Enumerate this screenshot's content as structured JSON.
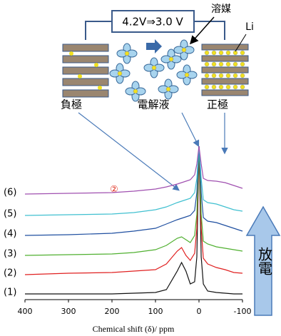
{
  "chart_data": {
    "type": "line",
    "x_label": "Chemical shift (δ)/ ppm",
    "annotations": [
      "4.2V⇒3.0 V",
      "溶媒",
      "Li",
      "負極",
      "電解液",
      "正極",
      "②",
      "放電"
    ],
    "x": [
      400,
      300,
      200,
      150,
      100,
      75,
      50,
      40,
      30,
      20,
      10,
      5,
      0,
      -5,
      -10,
      -20,
      -40,
      -60,
      -80,
      -100
    ],
    "xlim": [
      400,
      -100
    ],
    "xticks": [
      400,
      300,
      200,
      100,
      0,
      -100
    ],
    "ylim": [
      0,
      215
    ],
    "series": [
      {
        "name": "(1)",
        "color": "#111111",
        "values": [
          8,
          8,
          8,
          9,
          10,
          14,
          40,
          52,
          40,
          22,
          25,
          60,
          215,
          60,
          22,
          12,
          10,
          9,
          8,
          8
        ]
      },
      {
        "name": "(2)",
        "color": "#e02020",
        "values": [
          35,
          37,
          38,
          40,
          42,
          50,
          68,
          73,
          62,
          55,
          65,
          100,
          215,
          100,
          58,
          50,
          45,
          42,
          38,
          37
        ]
      },
      {
        "name": "(3)",
        "color": "#50b030",
        "values": [
          62,
          63,
          64,
          66,
          70,
          76,
          86,
          88,
          84,
          80,
          90,
          120,
          215,
          120,
          82,
          78,
          74,
          72,
          70,
          68
        ]
      },
      {
        "name": "(4)",
        "color": "#1f4fa0",
        "values": [
          90,
          91,
          93,
          96,
          100,
          106,
          112,
          114,
          116,
          118,
          125,
          150,
          215,
          150,
          115,
          110,
          108,
          104,
          100,
          96
        ]
      },
      {
        "name": "(5)",
        "color": "#40c0d0",
        "values": [
          118,
          119,
          120,
          122,
          126,
          130,
          136,
          138,
          140,
          142,
          150,
          170,
          215,
          170,
          140,
          136,
          134,
          130,
          126,
          124
        ]
      },
      {
        "name": "(6)",
        "color": "#a050b0",
        "values": [
          148,
          149,
          150,
          152,
          155,
          158,
          162,
          164,
          166,
          168,
          175,
          190,
          215,
          190,
          170,
          167,
          166,
          164,
          160,
          156
        ]
      }
    ]
  }
}
